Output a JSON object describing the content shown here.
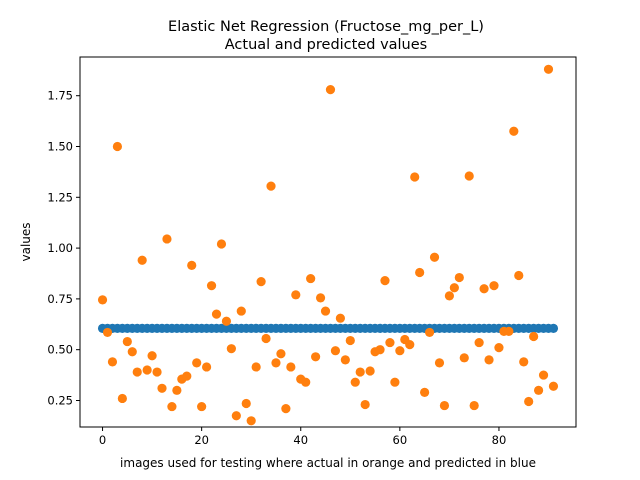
{
  "chart_data": {
    "type": "scatter",
    "title_line1": "Elastic Net Regression (Fructose_mg_per_L)",
    "title_line2": "Actual and predicted values",
    "xlabel": "images used for testing where actual in orange and predicted in blue",
    "ylabel": "values",
    "xlim": [
      -4.55,
      95.55
    ],
    "ylim": [
      0.1195,
      1.9405
    ],
    "x_ticks": [
      0,
      20,
      40,
      60,
      80
    ],
    "y_ticks": [
      0.25,
      0.5,
      0.75,
      1.0,
      1.25,
      1.5,
      1.75
    ],
    "y_tick_labels": [
      "0.25",
      "0.50",
      "0.75",
      "1.00",
      "1.25",
      "1.50",
      "1.75"
    ],
    "grid": false,
    "legend": "none",
    "colors": {
      "predicted": "#1f77b4",
      "actual": "#ff7f0e"
    },
    "series": [
      {
        "role": "predicted",
        "color": "#1f77b4",
        "values": [
          0.605,
          0.605,
          0.605,
          0.605,
          0.605,
          0.605,
          0.605,
          0.605,
          0.605,
          0.605,
          0.605,
          0.605,
          0.605,
          0.605,
          0.605,
          0.605,
          0.605,
          0.605,
          0.605,
          0.605,
          0.605,
          0.605,
          0.605,
          0.605,
          0.605,
          0.605,
          0.605,
          0.605,
          0.605,
          0.605,
          0.605,
          0.605,
          0.605,
          0.605,
          0.605,
          0.605,
          0.605,
          0.605,
          0.605,
          0.605,
          0.605,
          0.605,
          0.605,
          0.605,
          0.605,
          0.605,
          0.605,
          0.605,
          0.605,
          0.605,
          0.605,
          0.605,
          0.605,
          0.605,
          0.605,
          0.605,
          0.605,
          0.605,
          0.605,
          0.605,
          0.605,
          0.605,
          0.605,
          0.605,
          0.605,
          0.605,
          0.605,
          0.605,
          0.605,
          0.605,
          0.605,
          0.605,
          0.605,
          0.605,
          0.605,
          0.605,
          0.605,
          0.605,
          0.605,
          0.605,
          0.605,
          0.605,
          0.605,
          0.605,
          0.605,
          0.605,
          0.605,
          0.605,
          0.605,
          0.605,
          0.605,
          0.605
        ]
      },
      {
        "role": "actual",
        "color": "#ff7f0e",
        "values": [
          0.745,
          0.585,
          0.44,
          1.5,
          0.26,
          0.54,
          0.49,
          0.39,
          0.94,
          0.4,
          0.47,
          0.39,
          0.31,
          1.045,
          0.22,
          0.3,
          0.355,
          0.37,
          0.915,
          0.435,
          0.22,
          0.415,
          0.815,
          0.675,
          1.02,
          0.64,
          0.505,
          0.175,
          0.69,
          0.235,
          0.15,
          0.415,
          0.835,
          0.555,
          1.305,
          0.435,
          0.48,
          0.21,
          0.415,
          0.77,
          0.355,
          0.34,
          0.85,
          0.465,
          0.755,
          0.69,
          1.78,
          0.495,
          0.655,
          0.45,
          0.545,
          0.34,
          0.39,
          0.23,
          0.395,
          0.49,
          0.5,
          0.84,
          0.535,
          0.34,
          0.495,
          0.55,
          0.525,
          1.35,
          0.88,
          0.29,
          0.585,
          0.955,
          0.435,
          0.225,
          0.765,
          0.805,
          0.855,
          0.46,
          1.355,
          0.225,
          0.535,
          0.8,
          0.45,
          0.815,
          0.51,
          0.59,
          0.59,
          1.575,
          0.865,
          0.44,
          0.245,
          0.565,
          0.3,
          0.375,
          1.88,
          0.32
        ]
      }
    ]
  }
}
